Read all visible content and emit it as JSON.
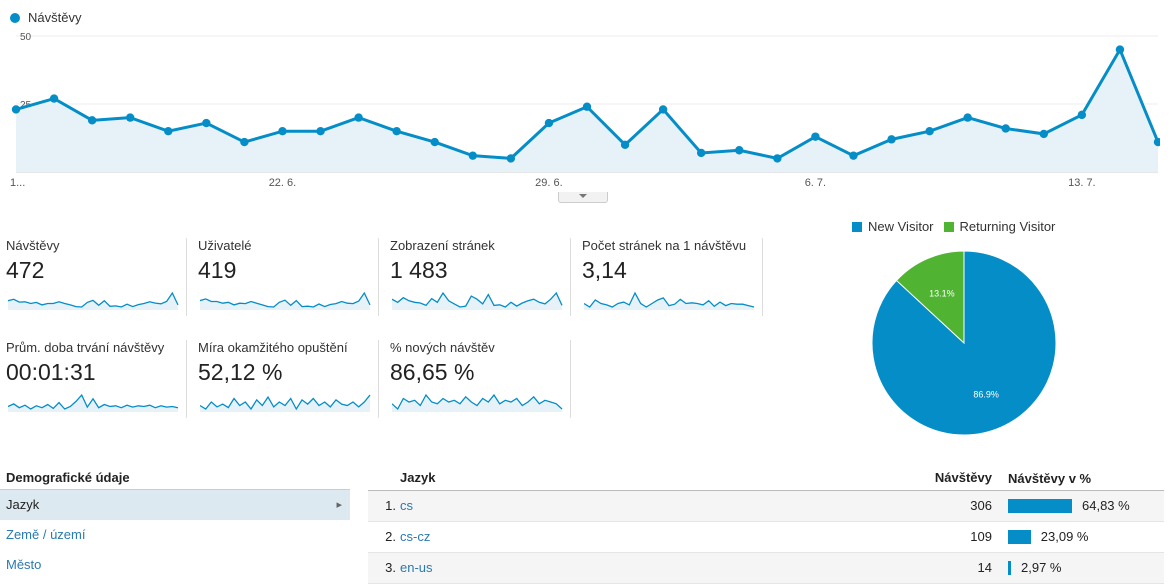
{
  "main_chart": {
    "legend_label": "Návštěvy",
    "color": "#058dc7",
    "y_ticks": [
      "50",
      "25"
    ],
    "ylim": [
      0,
      50
    ],
    "x_labels": [
      "1...",
      "22. 6.",
      "29. 6.",
      "6. 7.",
      "13. 7."
    ],
    "values": [
      23,
      27,
      19,
      20,
      15,
      18,
      11,
      15,
      15,
      20,
      15,
      11,
      6,
      5,
      18,
      24,
      10,
      23,
      7,
      8,
      5,
      13,
      6,
      12,
      15,
      20,
      16,
      14,
      21,
      45,
      11
    ]
  },
  "metrics": [
    {
      "label": "Návštěvy",
      "value": "472",
      "spark": [
        23,
        27,
        19,
        20,
        15,
        18,
        11,
        15,
        15,
        20,
        15,
        11,
        6,
        5,
        18,
        24,
        10,
        23,
        7,
        8,
        5,
        13,
        6,
        12,
        15,
        20,
        16,
        14,
        21,
        45,
        11
      ]
    },
    {
      "label": "Uživatelé",
      "value": "419",
      "spark": [
        20,
        24,
        18,
        18,
        14,
        16,
        10,
        14,
        13,
        18,
        14,
        10,
        6,
        5,
        16,
        21,
        9,
        20,
        6,
        7,
        5,
        12,
        6,
        11,
        13,
        18,
        14,
        13,
        19,
        38,
        10
      ]
    },
    {
      "label": "Zobrazení stránek",
      "value": "1 483",
      "spark": [
        40,
        30,
        45,
        35,
        30,
        28,
        20,
        42,
        30,
        60,
        35,
        25,
        15,
        18,
        50,
        40,
        25,
        55,
        20,
        22,
        15,
        30,
        18,
        28,
        35,
        40,
        30,
        25,
        40,
        60,
        20
      ]
    },
    {
      "label": "Počet stránek na 1 návštěvu",
      "value": "3,14",
      "spark": [
        3,
        2.5,
        3.5,
        3,
        2.8,
        2.5,
        3,
        3.2,
        2.8,
        4.5,
        3,
        2.5,
        3,
        3.5,
        3.8,
        2.7,
        2.9,
        3.6,
        3,
        3.1,
        3,
        2.8,
        3.4,
        2.6,
        3.2,
        2.7,
        3,
        2.9,
        2.9,
        2.7,
        2.5
      ]
    },
    {
      "label": "Prům. doba trvání návštěvy",
      "value": "00:01:31",
      "spark": [
        80,
        100,
        70,
        90,
        60,
        85,
        70,
        95,
        65,
        110,
        60,
        80,
        120,
        170,
        75,
        140,
        70,
        95,
        80,
        85,
        70,
        90,
        75,
        85,
        80,
        90,
        70,
        85,
        75,
        80,
        70
      ]
    },
    {
      "label": "Míra okamžitého opuštění",
      "value": "52,12 %",
      "spark": [
        50,
        45,
        55,
        48,
        52,
        47,
        60,
        50,
        55,
        45,
        58,
        50,
        62,
        48,
        55,
        50,
        60,
        45,
        58,
        52,
        60,
        50,
        55,
        48,
        58,
        52,
        50,
        55,
        48,
        55,
        65
      ]
    },
    {
      "label": "% nových návštěv",
      "value": "86,65 %",
      "spark": [
        85,
        82,
        88,
        86,
        87,
        84,
        90,
        86,
        85,
        88,
        86,
        87,
        85,
        89,
        86,
        84,
        88,
        86,
        90,
        85,
        87,
        86,
        88,
        84,
        86,
        89,
        85,
        87,
        86,
        85,
        82
      ]
    }
  ],
  "pie": {
    "legend": [
      {
        "label": "New Visitor",
        "color": "#058dc7"
      },
      {
        "label": "Returning Visitor",
        "color": "#50b432"
      }
    ],
    "slices": [
      {
        "label": "New Visitor",
        "value": 86.9,
        "text": "86.9%",
        "color": "#058dc7"
      },
      {
        "label": "Returning Visitor",
        "value": 13.1,
        "text": "13.1%",
        "color": "#50b432"
      }
    ]
  },
  "demographics": {
    "title": "Demografické údaje",
    "items": [
      "Jazyk",
      "Země / území",
      "Město"
    ]
  },
  "language_table": {
    "headers": {
      "language": "Jazyk",
      "visits": "Návštěvy",
      "visits_pct": "Návštěvy v %"
    },
    "rows": [
      {
        "idx": "1.",
        "lang": "cs",
        "visits": "306",
        "pct": "64,83 %",
        "pct_value": 64.83
      },
      {
        "idx": "2.",
        "lang": "cs-cz",
        "visits": "109",
        "pct": "23,09 %",
        "pct_value": 23.09
      },
      {
        "idx": "3.",
        "lang": "en-us",
        "visits": "14",
        "pct": "2,97 %",
        "pct_value": 2.97
      }
    ]
  }
}
